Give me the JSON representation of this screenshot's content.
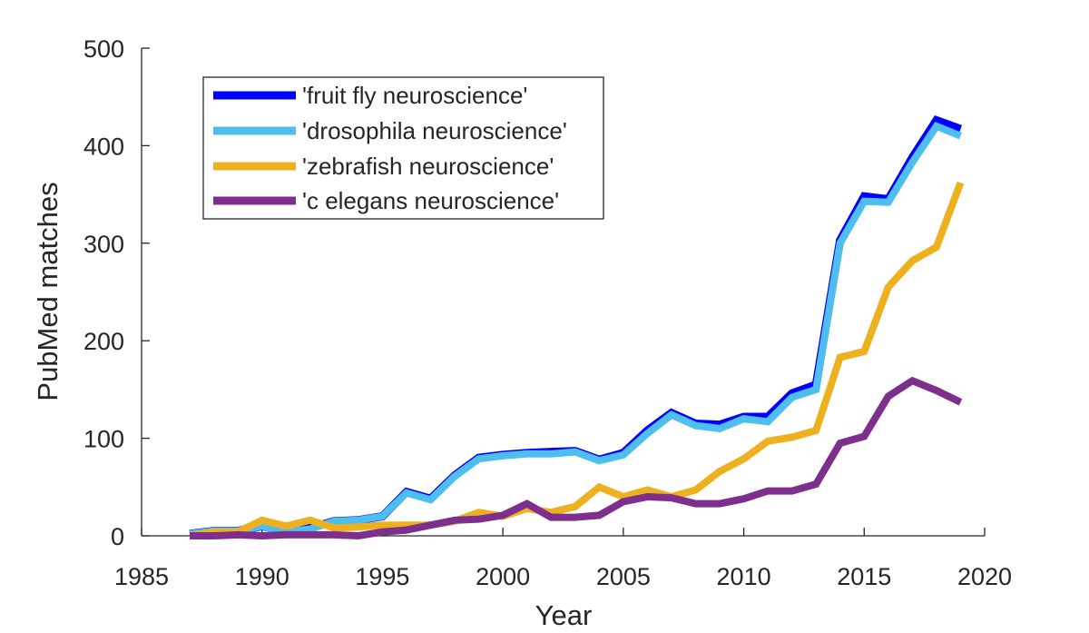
{
  "chart_data": {
    "type": "line",
    "title": "",
    "xlabel": "Year",
    "ylabel": "PubMed matches",
    "xlim": [
      1985,
      2020
    ],
    "ylim": [
      0,
      500
    ],
    "xticks": [
      "1985",
      "1990",
      "1995",
      "2000",
      "2005",
      "2010",
      "2015",
      "2020"
    ],
    "yticks": [
      "0",
      "100",
      "200",
      "300",
      "400",
      "500"
    ],
    "grid": false,
    "legend_position": "top-left",
    "x": [
      1987,
      1988,
      1989,
      1990,
      1991,
      1992,
      1993,
      1994,
      1995,
      1996,
      1997,
      1998,
      1999,
      2000,
      2001,
      2002,
      2003,
      2004,
      2005,
      2006,
      2007,
      2008,
      2009,
      2010,
      2011,
      2012,
      2013,
      2014,
      2015,
      2016,
      2017,
      2018,
      2019
    ],
    "series": [
      {
        "name": "'fruit fly neuroscience'",
        "color": "#0000ff",
        "values": [
          2,
          5,
          5,
          10,
          5,
          8,
          15,
          16,
          20,
          45,
          38,
          62,
          80,
          83,
          85,
          86,
          87,
          78,
          85,
          108,
          126,
          115,
          114,
          122,
          122,
          146,
          155,
          303,
          348,
          345,
          388,
          426,
          417
        ]
      },
      {
        "name": "'drosophila neuroscience'",
        "color": "#4dbeee",
        "values": [
          2,
          5,
          5,
          10,
          4,
          7,
          15,
          16,
          20,
          44,
          37,
          61,
          79,
          82,
          84,
          84,
          86,
          77,
          83,
          105,
          124,
          113,
          110,
          120,
          117,
          142,
          150,
          300,
          343,
          342,
          383,
          420,
          410
        ]
      },
      {
        "name": "'zebrafish neuroscience'",
        "color": "#edb120",
        "values": [
          0,
          4,
          4,
          16,
          10,
          16,
          8,
          9,
          11,
          11,
          11,
          15,
          24,
          20,
          28,
          24,
          30,
          50,
          40,
          47,
          40,
          47,
          66,
          79,
          97,
          101,
          108,
          183,
          189,
          255,
          282,
          296,
          362
        ]
      },
      {
        "name": "'c elegans neuroscience'",
        "color": "#7e2f8e",
        "values": [
          0,
          0,
          1,
          0,
          1,
          1,
          1,
          0,
          4,
          6,
          11,
          16,
          17,
          21,
          33,
          19,
          19,
          21,
          35,
          40,
          39,
          33,
          33,
          38,
          46,
          46,
          53,
          95,
          102,
          143,
          159,
          149,
          137
        ]
      }
    ]
  }
}
